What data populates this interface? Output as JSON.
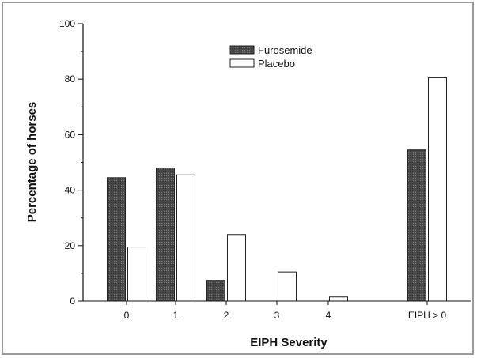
{
  "chart_data": {
    "type": "bar",
    "title": "",
    "xlabel": "EIPH Severity",
    "ylabel": "Percentage of horses",
    "ylim": [
      0,
      100
    ],
    "yticks": [
      0,
      20,
      40,
      60,
      80,
      100
    ],
    "categories": [
      "0",
      "1",
      "2",
      "3",
      "4",
      "EIPH > 0"
    ],
    "series": [
      {
        "name": "Furosemide",
        "color": "#555555",
        "values": [
          44.5,
          48,
          7.5,
          0,
          0,
          54.5
        ]
      },
      {
        "name": "Placebo",
        "color": "#ffffff",
        "values": [
          19.5,
          45.5,
          24,
          10.5,
          1.5,
          80.5
        ]
      }
    ],
    "legend_position": "top-center",
    "grid": false
  }
}
